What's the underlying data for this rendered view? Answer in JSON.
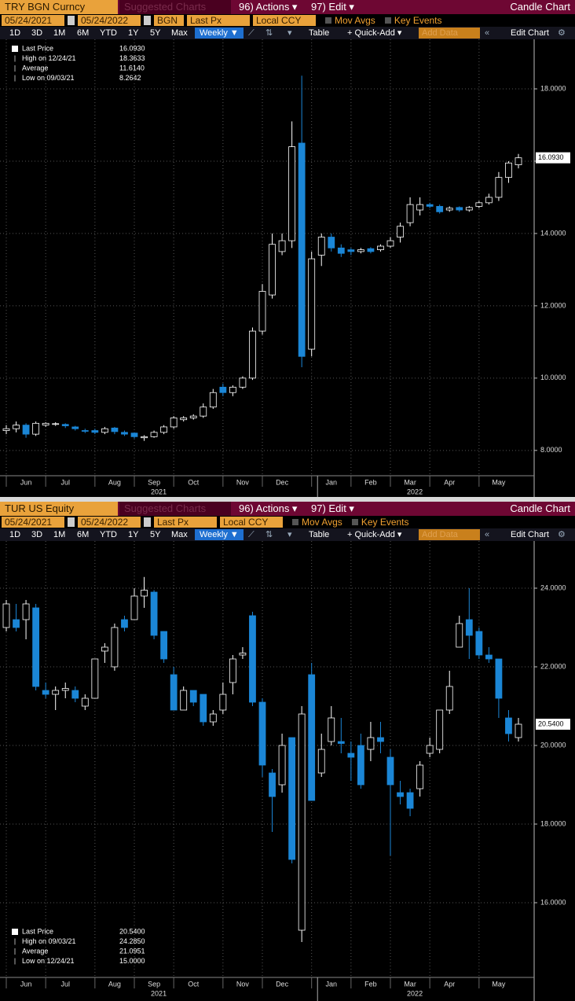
{
  "panels": [
    {
      "header": {
        "security": "TRY BGN Curncy",
        "suggested": "Suggested Charts",
        "actions": "96) Actions ▾",
        "edit": "97) Edit ▾",
        "chart_kind": "Candle Chart"
      },
      "settings_bar": [
        "05/24/2021",
        "05/24/2022",
        "BGN",
        "Last Px",
        "Local CCY",
        "Mov Avgs",
        "Key Events"
      ],
      "toolbar": [
        "1D",
        "3D",
        "1M",
        "6M",
        "YTD",
        "1Y",
        "5Y",
        "Max",
        "Weekly ▼",
        "Table",
        "+ Quick-Add ▾",
        "Add Data",
        "Edit Chart"
      ]
    },
    {
      "header": {
        "security": "TUR US Equity",
        "suggested": "Suggested Charts",
        "actions": "96) Actions ▾",
        "edit": "97) Edit ▾",
        "chart_kind": "Candle Chart"
      },
      "settings_bar": [
        "05/24/2021",
        "05/24/2022",
        "Last Px",
        "Local CCY",
        "Mov Avgs",
        "Key Events"
      ],
      "toolbar": [
        "1D",
        "3D",
        "1M",
        "6M",
        "YTD",
        "1Y",
        "5Y",
        "Max",
        "Weekly ▼",
        "Table",
        "+ Quick-Add ▾",
        "Add Data",
        "Edit Chart"
      ]
    }
  ],
  "chart_data": [
    {
      "type": "candlestick",
      "legend": "upper left",
      "grid": true,
      "up_color": "#ffffff",
      "down_color": "#1b86d6",
      "stats": [
        {
          "label": "Last Price",
          "value": "16.0930"
        },
        {
          "label": "High on 12/24/21",
          "value": "18.3633"
        },
        {
          "label": "Average",
          "value": "11.6140"
        },
        {
          "label": "Low on 09/03/21",
          "value": "8.2642"
        }
      ],
      "categories": [
        null,
        null,
        "Jun",
        null,
        null,
        null,
        "Jul",
        null,
        null,
        null,
        null,
        "Aug",
        null,
        null,
        null,
        "Sep",
        null,
        null,
        null,
        "Oct",
        null,
        null,
        null,
        null,
        "Nov",
        null,
        null,
        null,
        "Dec",
        null,
        null,
        null,
        null,
        "Jan",
        null,
        null,
        null,
        "Feb",
        null,
        null,
        null,
        "Mar",
        null,
        null,
        null,
        "Apr",
        null,
        null,
        null,
        null,
        "May",
        null,
        null
      ],
      "x_group_labels": [
        "2021",
        "2022"
      ],
      "open": [
        8.55,
        8.6,
        8.7,
        8.45,
        8.7,
        8.72,
        8.72,
        8.65,
        8.55,
        8.55,
        8.5,
        8.62,
        8.5,
        8.48,
        8.35,
        8.38,
        8.5,
        8.65,
        8.85,
        8.9,
        8.95,
        9.2,
        9.75,
        9.6,
        9.75,
        10.0,
        11.3,
        12.3,
        13.5,
        13.8,
        16.5,
        10.8,
        13.4,
        13.9,
        13.6,
        13.55,
        13.5,
        13.58,
        13.55,
        13.65,
        13.9,
        14.3,
        14.65,
        14.8,
        14.75,
        14.65,
        14.72,
        14.65,
        14.75,
        14.85,
        15.0,
        15.55,
        15.9
      ],
      "high": [
        8.7,
        8.8,
        8.75,
        8.8,
        8.78,
        8.78,
        8.75,
        8.68,
        8.6,
        8.6,
        8.65,
        8.65,
        8.55,
        8.5,
        8.42,
        8.55,
        8.7,
        8.95,
        8.95,
        9.0,
        9.3,
        9.7,
        9.85,
        9.8,
        10.05,
        11.4,
        12.6,
        14.0,
        14.0,
        17.1,
        18.3633,
        13.5,
        14.0,
        14.0,
        13.7,
        13.6,
        13.6,
        13.62,
        13.7,
        13.9,
        14.3,
        15.0,
        15.0,
        14.85,
        14.8,
        14.75,
        14.75,
        14.76,
        14.9,
        15.1,
        15.7,
        16.0,
        16.2
      ],
      "low": [
        8.45,
        8.5,
        8.35,
        8.4,
        8.65,
        8.68,
        8.62,
        8.55,
        8.48,
        8.45,
        8.45,
        8.45,
        8.4,
        8.33,
        8.2642,
        8.35,
        8.45,
        8.6,
        8.8,
        8.85,
        8.9,
        9.15,
        9.5,
        9.5,
        9.7,
        9.95,
        11.2,
        12.2,
        13.4,
        13.6,
        10.3,
        10.6,
        13.1,
        13.5,
        13.35,
        13.4,
        13.45,
        13.45,
        13.5,
        13.6,
        13.75,
        14.2,
        14.5,
        14.7,
        14.55,
        14.6,
        14.6,
        14.6,
        14.7,
        14.8,
        14.9,
        15.4,
        15.8
      ],
      "close": [
        8.6,
        8.7,
        8.45,
        8.75,
        8.75,
        8.74,
        8.68,
        8.6,
        8.53,
        8.5,
        8.6,
        8.52,
        8.45,
        8.38,
        8.38,
        8.5,
        8.65,
        8.9,
        8.9,
        8.95,
        9.2,
        9.6,
        9.6,
        9.75,
        10.0,
        11.3,
        12.4,
        13.7,
        13.8,
        16.4,
        10.6,
        13.3,
        13.9,
        13.6,
        13.45,
        13.5,
        13.55,
        13.5,
        13.65,
        13.8,
        14.2,
        14.8,
        14.8,
        14.75,
        14.6,
        14.7,
        14.65,
        14.72,
        14.85,
        15.0,
        15.55,
        15.95,
        16.093
      ],
      "ylim": [
        7.3,
        19.37
      ],
      "yticks": [
        {
          "value": 8,
          "label": "8.0000"
        },
        {
          "value": 10,
          "label": "10.0000"
        },
        {
          "value": 12,
          "label": "12.0000"
        },
        {
          "value": 14,
          "label": "14.0000"
        },
        {
          "value": 16,
          "label": "16.0000"
        },
        {
          "value": 18,
          "label": "18.0000"
        }
      ]
    },
    {
      "type": "candlestick",
      "legend": "lower left",
      "grid": true,
      "up_color": "#ffffff",
      "down_color": "#1b86d6",
      "stats": [
        {
          "label": "Last Price",
          "value": "20.5400"
        },
        {
          "label": "High on 09/03/21",
          "value": "24.2850"
        },
        {
          "label": "Average",
          "value": "21.0951"
        },
        {
          "label": "Low on 12/24/21",
          "value": "15.0000"
        }
      ],
      "categories": [
        null,
        null,
        "Jun",
        null,
        null,
        null,
        "Jul",
        null,
        null,
        null,
        null,
        "Aug",
        null,
        null,
        null,
        "Sep",
        null,
        null,
        null,
        "Oct",
        null,
        null,
        null,
        null,
        "Nov",
        null,
        null,
        null,
        "Dec",
        null,
        null,
        null,
        null,
        "Jan",
        null,
        null,
        null,
        "Feb",
        null,
        null,
        null,
        "Mar",
        null,
        null,
        null,
        "Apr",
        null,
        null,
        null,
        null,
        "May",
        null,
        null
      ],
      "x_group_labels": [
        "2021",
        "2022"
      ],
      "open": [
        23.0,
        23.2,
        23.2,
        23.5,
        21.4,
        21.3,
        21.4,
        21.4,
        21.0,
        21.2,
        22.4,
        22.0,
        23.2,
        23.2,
        23.8,
        23.9,
        22.9,
        21.8,
        20.9,
        21.4,
        21.3,
        20.6,
        20.9,
        21.6,
        22.3,
        23.3,
        21.1,
        19.3,
        19.0,
        20.2,
        15.3,
        21.8,
        19.3,
        20.1,
        20.1,
        19.8,
        20.0,
        19.9,
        20.2,
        19.7,
        18.8,
        18.8,
        18.9,
        19.8,
        19.9,
        20.9,
        22.5,
        23.2,
        22.9,
        22.3,
        22.2,
        20.7,
        20.2
      ],
      "high": [
        23.7,
        23.6,
        23.7,
        23.6,
        21.6,
        21.5,
        21.6,
        21.5,
        21.3,
        22.2,
        22.6,
        23.1,
        23.3,
        24.0,
        24.285,
        23.95,
        22.9,
        22.0,
        21.5,
        21.4,
        21.3,
        20.9,
        21.6,
        22.3,
        22.5,
        23.4,
        21.2,
        19.4,
        20.3,
        20.2,
        21.0,
        22.1,
        20.3,
        21.0,
        20.7,
        20.1,
        20.3,
        20.6,
        20.6,
        19.9,
        19.1,
        18.9,
        19.6,
        20.2,
        20.9,
        21.9,
        23.3,
        24.0,
        23.0,
        22.5,
        22.2,
        20.9,
        20.7
      ],
      "low": [
        22.9,
        22.9,
        22.7,
        21.4,
        21.2,
        20.9,
        21.2,
        21.1,
        20.9,
        21.2,
        22.1,
        21.9,
        22.9,
        23.2,
        23.5,
        22.7,
        22.1,
        20.9,
        20.9,
        21.0,
        20.5,
        20.5,
        20.8,
        21.3,
        22.2,
        21.0,
        19.2,
        17.8,
        18.8,
        17.0,
        15.0,
        18.6,
        19.2,
        20.0,
        19.8,
        19.1,
        18.9,
        19.6,
        19.8,
        17.2,
        18.5,
        18.2,
        18.7,
        19.7,
        19.8,
        20.8,
        22.5,
        22.2,
        22.2,
        22.1,
        20.7,
        20.1,
        20.1
      ],
      "close": [
        23.6,
        23.0,
        23.6,
        21.5,
        21.3,
        21.4,
        21.45,
        21.2,
        21.2,
        22.2,
        22.5,
        23.0,
        23.0,
        23.8,
        23.95,
        22.8,
        22.2,
        20.9,
        21.4,
        21.1,
        20.6,
        20.8,
        21.3,
        22.2,
        22.35,
        21.1,
        19.5,
        18.7,
        20.0,
        17.1,
        20.8,
        18.6,
        19.9,
        20.7,
        20.05,
        19.7,
        19.0,
        20.2,
        20.1,
        19.0,
        18.7,
        18.4,
        19.5,
        20.0,
        20.9,
        21.5,
        23.1,
        22.8,
        22.3,
        22.2,
        21.2,
        20.3,
        20.54
      ],
      "ylim": [
        14.1,
        25.2
      ],
      "yticks": [
        {
          "value": 16,
          "label": "16.0000"
        },
        {
          "value": 18,
          "label": "18.0000"
        },
        {
          "value": 20,
          "label": "20.0000"
        },
        {
          "value": 22,
          "label": "22.0000"
        },
        {
          "value": 24,
          "label": "24.0000"
        }
      ]
    }
  ]
}
